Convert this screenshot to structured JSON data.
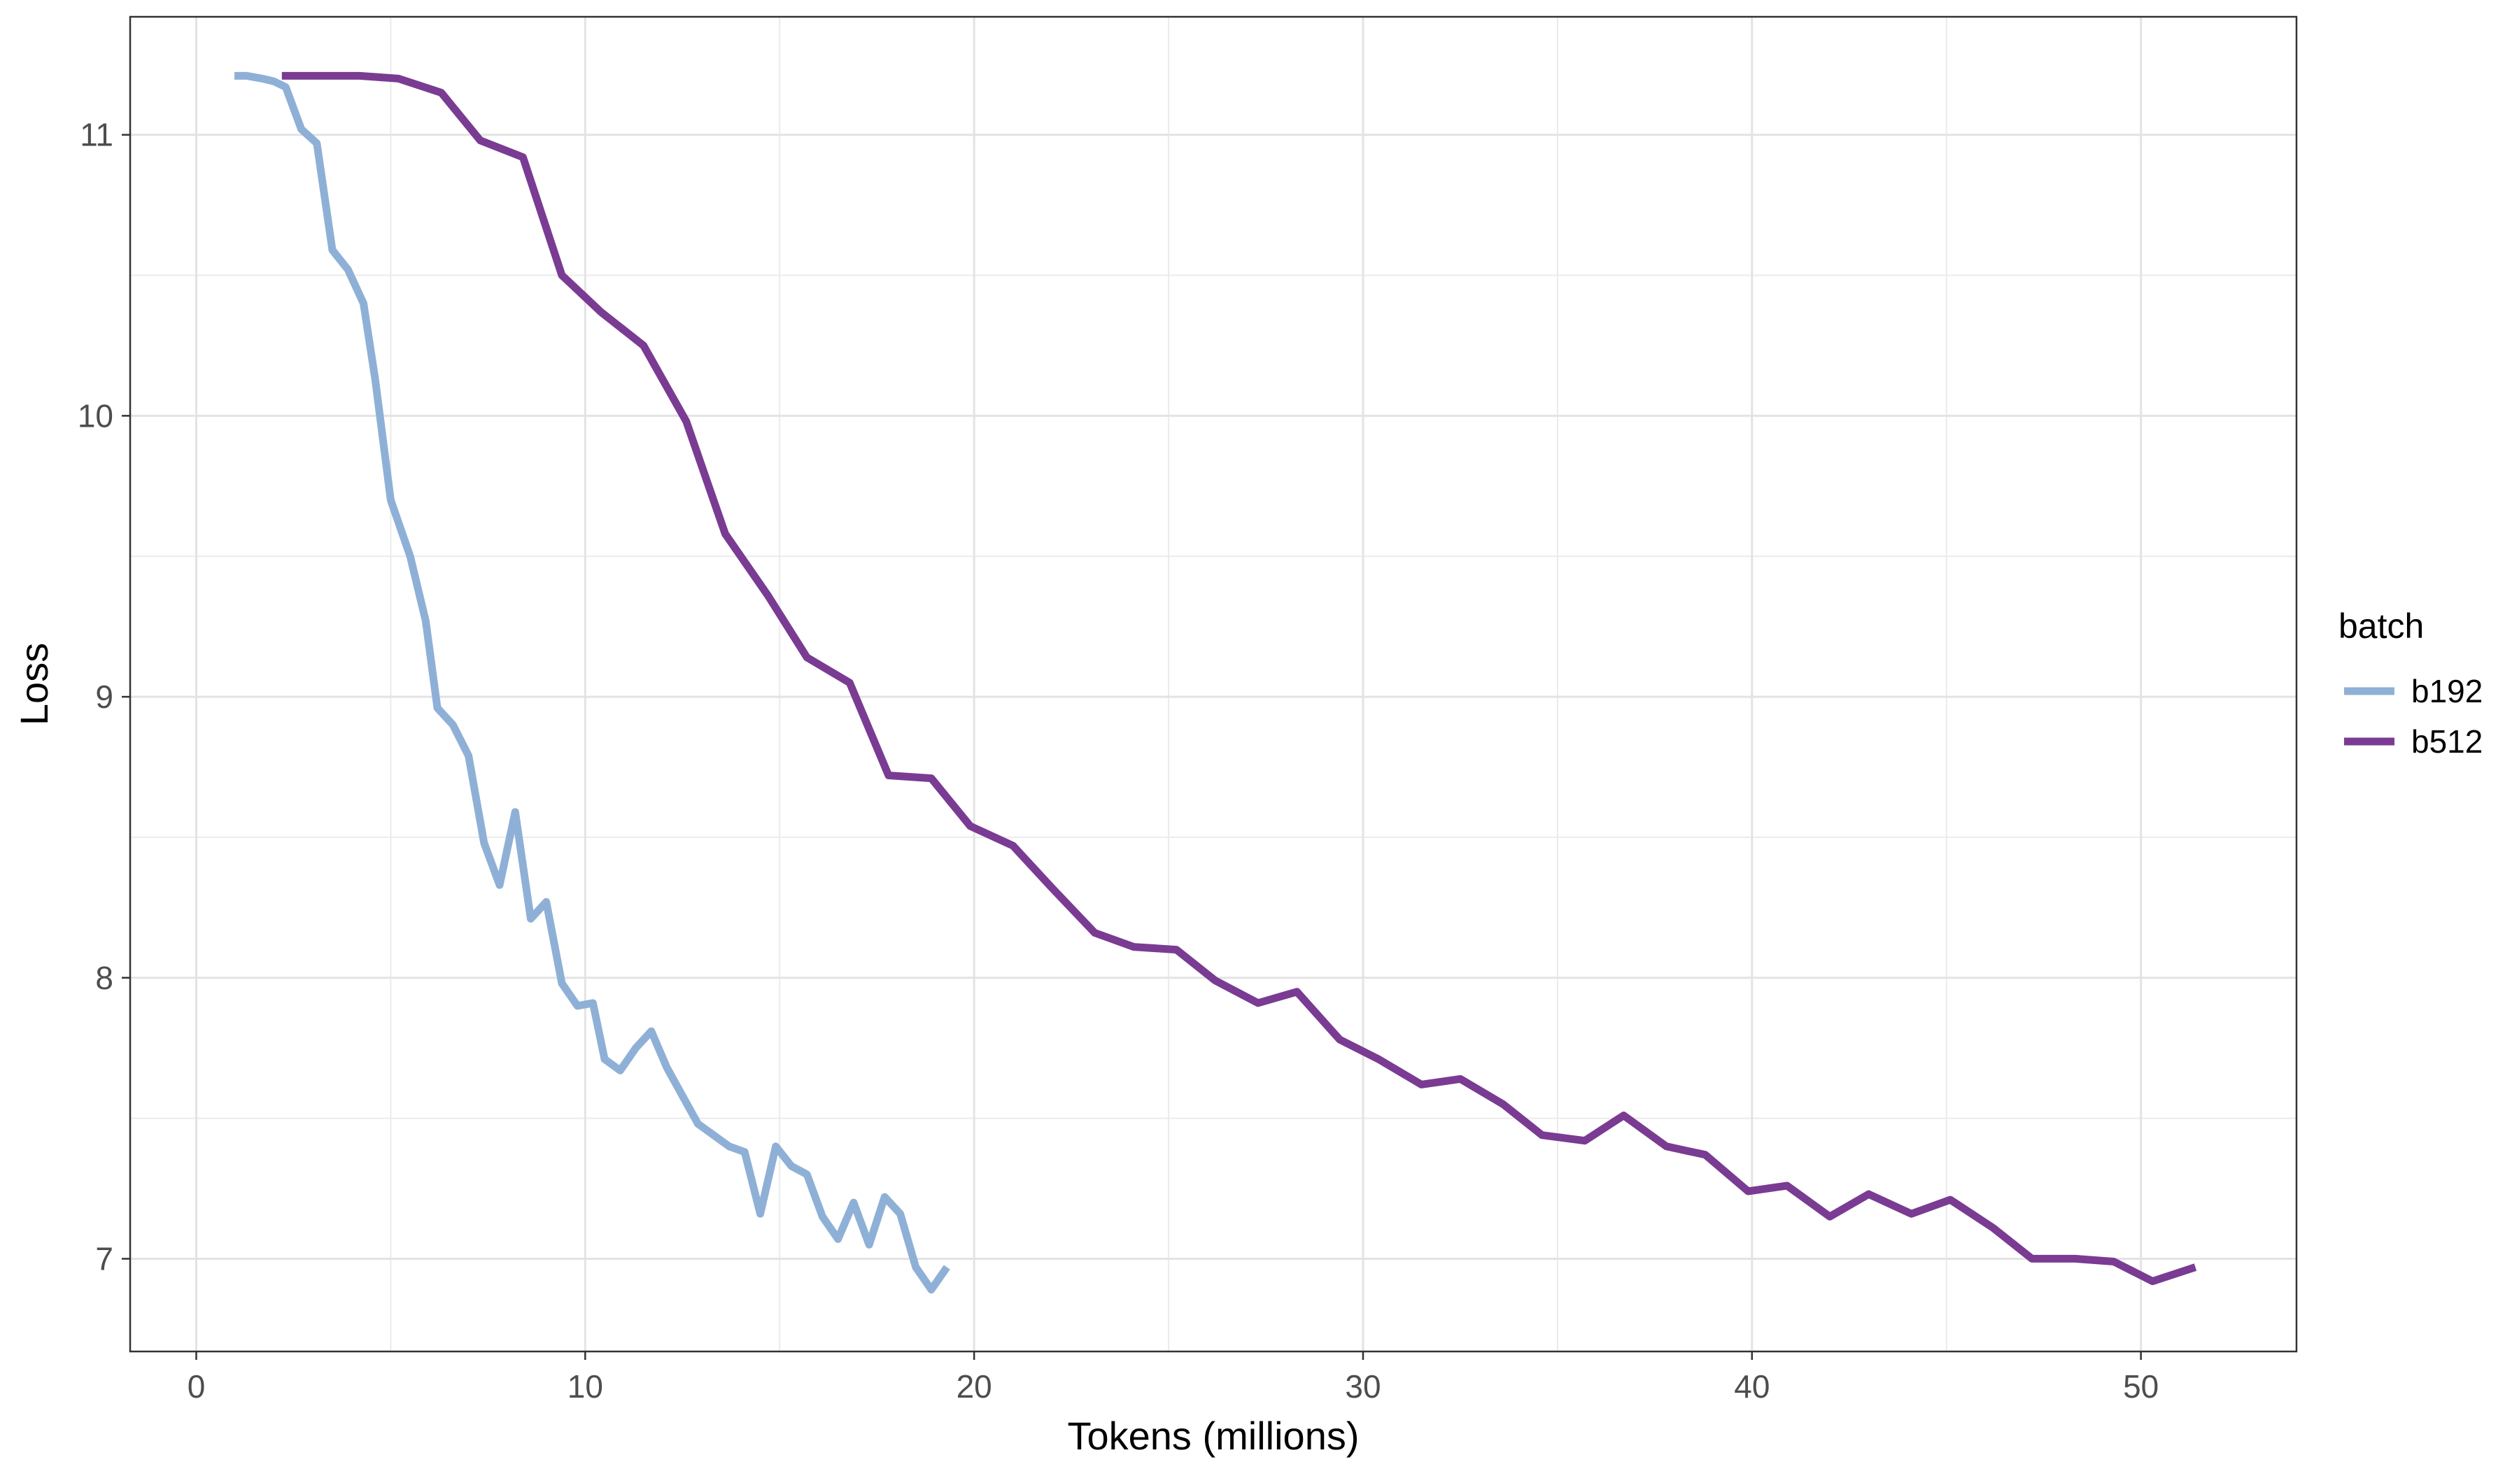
{
  "chart_data": {
    "type": "line",
    "xlabel": "Tokens (millions)",
    "ylabel": "Loss",
    "xlim": [
      -1.7,
      54
    ],
    "ylim": [
      6.67,
      11.42
    ],
    "x_ticks": [
      0,
      10,
      20,
      30,
      40,
      50
    ],
    "y_ticks": [
      7,
      8,
      9,
      10,
      11
    ],
    "grid": true,
    "legend": {
      "title": "batch",
      "position": "right"
    },
    "series": [
      {
        "name": "b192",
        "color": "#8fb0d6",
        "points": [
          [
            0.98,
            11.21
          ],
          [
            1.3,
            11.21
          ],
          [
            1.7,
            11.2
          ],
          [
            2.0,
            11.19
          ],
          [
            2.3,
            11.17
          ],
          [
            2.7,
            11.02
          ],
          [
            3.1,
            10.97
          ],
          [
            3.5,
            10.59
          ],
          [
            3.9,
            10.52
          ],
          [
            4.3,
            10.4
          ],
          [
            4.6,
            10.13
          ],
          [
            5.0,
            9.7
          ],
          [
            5.5,
            9.5
          ],
          [
            5.9,
            9.27
          ],
          [
            6.2,
            8.96
          ],
          [
            6.6,
            8.9
          ],
          [
            7.0,
            8.79
          ],
          [
            7.4,
            8.48
          ],
          [
            7.8,
            8.33
          ],
          [
            8.2,
            8.59
          ],
          [
            8.6,
            8.21
          ],
          [
            9.0,
            8.27
          ],
          [
            9.4,
            7.98
          ],
          [
            9.8,
            7.9
          ],
          [
            10.2,
            7.91
          ],
          [
            10.5,
            7.71
          ],
          [
            10.9,
            7.67
          ],
          [
            11.3,
            7.75
          ],
          [
            11.7,
            7.81
          ],
          [
            12.1,
            7.68
          ],
          [
            12.5,
            7.58
          ],
          [
            12.9,
            7.48
          ],
          [
            13.3,
            7.44
          ],
          [
            13.7,
            7.4
          ],
          [
            14.1,
            7.38
          ],
          [
            14.5,
            7.16
          ],
          [
            14.9,
            7.4
          ],
          [
            15.3,
            7.33
          ],
          [
            15.7,
            7.3
          ],
          [
            16.1,
            7.15
          ],
          [
            16.5,
            7.07
          ],
          [
            16.9,
            7.2
          ],
          [
            17.3,
            7.05
          ],
          [
            17.7,
            7.22
          ],
          [
            18.1,
            7.16
          ],
          [
            18.5,
            6.97
          ],
          [
            18.9,
            6.89
          ],
          [
            19.3,
            6.97
          ]
        ]
      },
      {
        "name": "b512",
        "color": "#7a3b93",
        "points": [
          [
            2.2,
            11.21
          ],
          [
            3.2,
            11.21
          ],
          [
            4.2,
            11.21
          ],
          [
            5.2,
            11.2
          ],
          [
            6.3,
            11.15
          ],
          [
            7.3,
            10.98
          ],
          [
            8.4,
            10.92
          ],
          [
            9.4,
            10.5
          ],
          [
            10.4,
            10.37
          ],
          [
            11.5,
            10.25
          ],
          [
            12.6,
            9.98
          ],
          [
            13.6,
            9.58
          ],
          [
            14.7,
            9.36
          ],
          [
            15.7,
            9.14
          ],
          [
            16.8,
            9.05
          ],
          [
            17.8,
            8.72
          ],
          [
            18.9,
            8.71
          ],
          [
            19.9,
            8.54
          ],
          [
            21.0,
            8.47
          ],
          [
            22.0,
            8.32
          ],
          [
            23.1,
            8.16
          ],
          [
            24.1,
            8.11
          ],
          [
            25.2,
            8.1
          ],
          [
            26.2,
            7.99
          ],
          [
            27.3,
            7.91
          ],
          [
            28.3,
            7.95
          ],
          [
            29.4,
            7.78
          ],
          [
            30.4,
            7.71
          ],
          [
            31.5,
            7.62
          ],
          [
            32.5,
            7.64
          ],
          [
            33.6,
            7.55
          ],
          [
            34.6,
            7.44
          ],
          [
            35.7,
            7.42
          ],
          [
            36.7,
            7.51
          ],
          [
            37.8,
            7.4
          ],
          [
            38.8,
            7.37
          ],
          [
            39.9,
            7.24
          ],
          [
            40.9,
            7.26
          ],
          [
            42.0,
            7.15
          ],
          [
            43.0,
            7.23
          ],
          [
            44.1,
            7.16
          ],
          [
            45.1,
            7.21
          ],
          [
            46.2,
            7.11
          ],
          [
            47.2,
            7.0
          ],
          [
            48.3,
            7.0
          ],
          [
            49.3,
            6.99
          ],
          [
            50.3,
            6.92
          ],
          [
            51.4,
            6.97
          ]
        ]
      }
    ]
  }
}
